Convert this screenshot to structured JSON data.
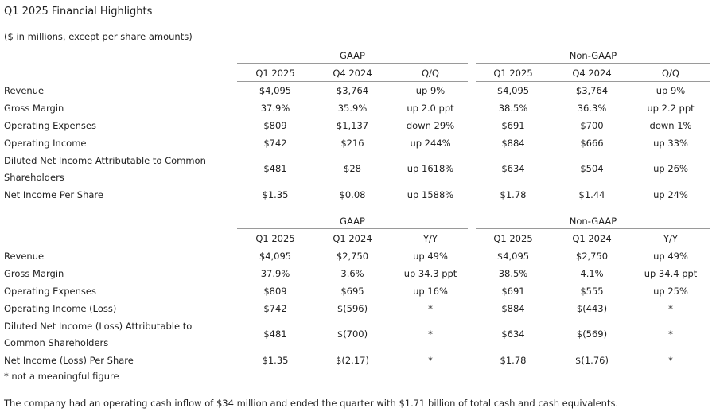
{
  "title": "Q1 2025 Financial Highlights",
  "subtitle": "($ in millions, except per share amounts)",
  "table1": {
    "gaap_label": "GAAP",
    "nongaap_label": "Non-GAAP",
    "headers": [
      "Q1 2025",
      "Q4 2024",
      "Q/Q",
      "Q1 2025",
      "Q4 2024",
      "Q/Q"
    ],
    "rows": [
      {
        "label": "Revenue",
        "values": [
          "$4,095",
          "$3,764",
          "up 9%",
          "$4,095",
          "$3,764",
          "up 9%"
        ]
      },
      {
        "label": "Gross Margin",
        "values": [
          "37.9%",
          "35.9%",
          "up 2.0 ppt",
          "38.5%",
          "36.3%",
          "up 2.2 ppt"
        ]
      },
      {
        "label": "Operating Expenses",
        "values": [
          "$809",
          "$1,137",
          "down 29%",
          "$691",
          "$700",
          "down 1%"
        ]
      },
      {
        "label": "Operating Income",
        "values": [
          "$742",
          "$216",
          "up 244%",
          "$884",
          "$666",
          "up 33%"
        ]
      },
      {
        "label": "Diluted Net Income Attributable to Common",
        "label2": "Shareholders",
        "values": [
          "$481",
          "$28",
          "up 1618%",
          "$634",
          "$504",
          "up 26%"
        ]
      },
      {
        "label": "Net Income Per Share",
        "values": [
          "$1.35",
          "$0.08",
          "up 1588%",
          "$1.78",
          "$1.44",
          "up 24%"
        ]
      }
    ]
  },
  "table2": {
    "gaap_label": "GAAP",
    "nongaap_label": "Non-GAAP",
    "headers": [
      "Q1 2025",
      "Q1 2024",
      "Y/Y",
      "Q1 2025",
      "Q1 2024",
      "Y/Y"
    ],
    "rows": [
      {
        "label": "Revenue",
        "values": [
          "$4,095",
          "$2,750",
          "up 49%",
          "$4,095",
          "$2,750",
          "up 49%"
        ]
      },
      {
        "label": "Gross Margin",
        "values": [
          "37.9%",
          "3.6%",
          "up 34.3 ppt",
          "38.5%",
          "4.1%",
          "up 34.4 ppt"
        ]
      },
      {
        "label": "Operating Expenses",
        "values": [
          "$809",
          "$695",
          "up 16%",
          "$691",
          "$555",
          "up 25%"
        ]
      },
      {
        "label": "Operating Income (Loss)",
        "values": [
          "$742",
          "$(596)",
          "*",
          "$884",
          "$(443)",
          "*"
        ]
      },
      {
        "label": "Diluted Net Income (Loss) Attributable to",
        "label2": "Common Shareholders",
        "values": [
          "$481",
          "$(700)",
          "*",
          "$634",
          "$(569)",
          "*"
        ]
      },
      {
        "label": "Net Income (Loss) Per Share",
        "values": [
          "$1.35",
          "$(2.17)",
          "*",
          "$1.78",
          "$(1.76)",
          "*"
        ]
      }
    ]
  },
  "footnote": "* not a meaningful figure",
  "summary": "The company had an operating cash inflow of $34 million and ended the quarter with $1.71 billion of total cash and cash equivalents."
}
